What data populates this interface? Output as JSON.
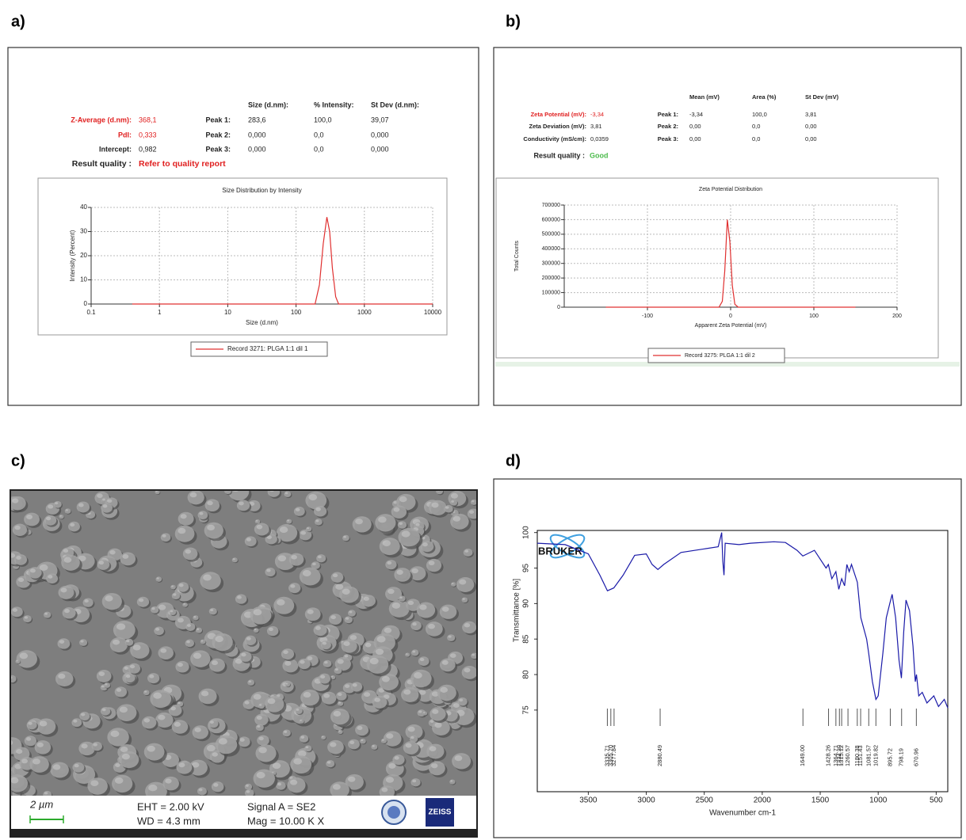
{
  "panel_labels": [
    "a)",
    "b)",
    "c)",
    "d)"
  ],
  "size_table": {
    "summary": [
      [
        "Z-Average (d.nm):",
        "368,1"
      ],
      [
        "PdI:",
        "0,333"
      ],
      [
        "Intercept:",
        "0,982"
      ]
    ],
    "quality": [
      "Result quality :",
      "Refer to quality report"
    ],
    "headers": [
      "Size (d.nm):",
      "% Intensity:",
      "St Dev (d.nm):"
    ],
    "peaks": [
      [
        "Peak 1:",
        "283,6",
        "100,0",
        "39,07"
      ],
      [
        "Peak 2:",
        "0,000",
        "0,0",
        "0,000"
      ],
      [
        "Peak 3:",
        "0,000",
        "0,0",
        "0,000"
      ]
    ]
  },
  "zeta_table": {
    "summary": [
      [
        "Zeta Potential (mV):",
        "-3,34"
      ],
      [
        "Zeta Deviation (mV):",
        "3,81"
      ],
      [
        "Conductivity (mS/cm):",
        "0,0359"
      ]
    ],
    "quality": [
      "Result quality :",
      "Good"
    ],
    "headers": [
      "Mean (mV)",
      "Area (%)",
      "St Dev (mV)"
    ],
    "peaks": [
      [
        "Peak 1:",
        "-3,34",
        "100,0",
        "3,81"
      ],
      [
        "Peak 2:",
        "0,00",
        "0,0",
        "0,00"
      ],
      [
        "Peak 3:",
        "0,00",
        "0,0",
        "0,00"
      ]
    ]
  },
  "sem": {
    "scale": "2 µm",
    "info": [
      "EHT =  2.00 kV",
      "WD =  4.3 mm",
      "Signal A = SE2",
      "Mag =   10.00 K X"
    ],
    "logo": "ZEISS"
  },
  "chart_data": [
    {
      "type": "line",
      "title": "Size Distribution by Intensity",
      "x_label": "Size (d.nm)",
      "y_label": "Intensity (Percent)",
      "xscale": "log",
      "xlim": [
        0.1,
        10000
      ],
      "xticks": [
        0.1,
        1,
        10,
        100,
        1000,
        10000
      ],
      "ylim": [
        0,
        40
      ],
      "yticks": [
        0,
        10,
        20,
        30,
        40
      ],
      "grid": true,
      "legend": "bottom",
      "series": [
        {
          "name": "Record 3271: PLGA 1:1 dil  1",
          "color": "#e03030",
          "x": [
            0.4,
            1,
            10,
            100,
            190,
            220,
            250,
            283,
            310,
            340,
            380,
            420,
            1000,
            10000
          ],
          "values": [
            0,
            0,
            0,
            0,
            0,
            8,
            25,
            36,
            30,
            15,
            3,
            0,
            0,
            0
          ]
        }
      ]
    },
    {
      "type": "line",
      "title": "Zeta Potential Distribution",
      "x_label": "Apparent Zeta Potential (mV)",
      "y_label": "Total Counts",
      "xlim": [
        -200,
        200
      ],
      "xticks": [
        -100,
        0,
        100,
        200
      ],
      "ylim": [
        0,
        700000
      ],
      "yticks": [
        0,
        100000,
        200000,
        300000,
        400000,
        500000,
        600000,
        700000
      ],
      "grid": true,
      "legend": "bottom",
      "series": [
        {
          "name": "Record 3275: PLGA 1:1 dil  2",
          "color": "#e03030",
          "x": [
            -150,
            -14,
            -10,
            -7,
            -4,
            -1,
            2,
            5,
            9,
            150
          ],
          "values": [
            0,
            0,
            40000,
            250000,
            600000,
            450000,
            150000,
            20000,
            0,
            0
          ]
        }
      ]
    },
    {
      "type": "line",
      "x_label": "Wavenumber cm-1",
      "y_label": "Transmittance [%]",
      "logo": "BRUKER",
      "xlim": [
        3940,
        400
      ],
      "xticks": [
        3500,
        3000,
        2500,
        2000,
        1500,
        1000,
        500
      ],
      "ylim": [
        63.5,
        100.3
      ],
      "yticks": [
        75,
        80,
        85,
        90,
        95,
        100
      ],
      "grid": false,
      "peaks": [
        3335.71,
        {
          "value": 3305.7,
          "label": "3305.70"
        },
        3277.84,
        2880.49,
        {
          "value": 1649,
          "label": "1649.00"
        },
        1428.26,
        1364.71,
        1334.39,
        1315.12,
        1260.57,
        1180.38,
        1151.43,
        1081.57,
        1019.82,
        895.72,
        798.19,
        670.96
      ],
      "series": [
        {
          "color": "#1a1aa8",
          "x": [
            3940,
            3700,
            3500,
            3400,
            3335,
            3280,
            3200,
            3100,
            3000,
            2950,
            2900,
            2850,
            2700,
            2500,
            2380,
            2350,
            2340,
            2330,
            2320,
            2200,
            2100,
            1900,
            1800,
            1700,
            1650,
            1550,
            1450,
            1430,
            1400,
            1365,
            1340,
            1315,
            1290,
            1270,
            1250,
            1230,
            1180,
            1150,
            1100,
            1082,
            1050,
            1020,
            1000,
            960,
            930,
            900,
            880,
            850,
            820,
            800,
            780,
            760,
            730,
            700,
            680,
            670,
            650,
            620,
            580,
            520,
            480,
            430,
            400
          ],
          "values": [
            98.5,
            98.3,
            97,
            94,
            91.8,
            92.2,
            94,
            96.8,
            97,
            95.5,
            94.8,
            95.5,
            97.2,
            97.7,
            98,
            100,
            96,
            94,
            98.5,
            98.3,
            98.5,
            98.7,
            98.6,
            97.5,
            96.7,
            97.5,
            95,
            95.5,
            93.5,
            94.5,
            92,
            93.5,
            92.5,
            95.5,
            94.5,
            95.5,
            93,
            88,
            85,
            83,
            79,
            76.5,
            77,
            83,
            88,
            90,
            91.3,
            88,
            82,
            79.5,
            86,
            90.5,
            89,
            84,
            79,
            80,
            77,
            77.5,
            76,
            77,
            75.5,
            76.5,
            75.3
          ]
        }
      ]
    }
  ]
}
